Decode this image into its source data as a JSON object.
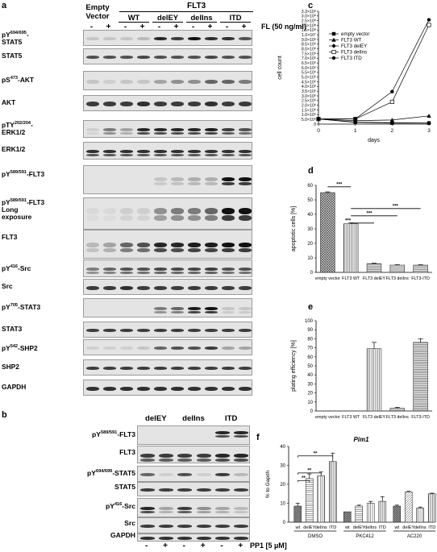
{
  "panel_a": {
    "letter": "a",
    "empty_vector": "Empty Vector",
    "flt3": "FLT3",
    "groups": [
      "WT",
      "delEY",
      "delIns",
      "ITD"
    ],
    "fl_label": "FL (50 ng/ml)",
    "signs": [
      "-",
      "+",
      "-",
      "+",
      "-",
      "+",
      "-",
      "+",
      "-",
      "+"
    ],
    "rows": [
      {
        "label": "pY694/695-STAT5",
        "main": "pY",
        "sup": "694/695",
        "tail": "-",
        "line2": "STAT5"
      },
      {
        "label": "STAT5",
        "main": "STAT5"
      },
      {
        "label": "pS473-AKT",
        "main": "pS",
        "sup": "473",
        "tail": "-AKT"
      },
      {
        "label": "AKT",
        "main": "AKT"
      },
      {
        "label": "pTY202/204-ERK1/2",
        "main": "pTY",
        "sup": "202/204",
        "tail": "-",
        "line2": "ERK1/2"
      },
      {
        "label": "ERK1/2",
        "main": "ERK1/2"
      },
      {
        "label": "pY589/591-FLT3",
        "main": "pY",
        "sup": "589/591",
        "tail": "-FLT3"
      },
      {
        "label": "pY589/591-FLT3 Long exposure",
        "main": "pY",
        "sup": "589/591",
        "tail": "-FLT3",
        "line2": "Long",
        "line3": "exposure"
      },
      {
        "label": "FLT3",
        "main": "FLT3"
      },
      {
        "label": "pY416-Src",
        "main": "pY",
        "sup": "416",
        "tail": "-Src"
      },
      {
        "label": "Src",
        "main": "Src"
      },
      {
        "label": "pY705-STAT3",
        "main": "pY",
        "sup": "705",
        "tail": "-STAT3"
      },
      {
        "label": "STAT3",
        "main": "STAT3"
      },
      {
        "label": "pY542-SHP2",
        "main": "pY",
        "sup": "542",
        "tail": "-SHP2"
      },
      {
        "label": "SHP2",
        "main": "SHP2"
      },
      {
        "label": "GAPDH",
        "main": "GAPDH"
      }
    ]
  },
  "panel_b": {
    "letter": "b",
    "groups": [
      "delEY",
      "delIns",
      "ITD"
    ],
    "rows": [
      {
        "label": "pY589/591-FLT3",
        "main": "pY",
        "sup": "589/591",
        "tail": "-FLT3"
      },
      {
        "label": "FLT3",
        "main": "FLT3"
      },
      {
        "label": "pY694/699-STAT5",
        "main": "pY",
        "sup": "694/699",
        "tail": "-STAT5"
      },
      {
        "label": "STAT5",
        "main": "STAT5"
      },
      {
        "label": "pY416-Src",
        "main": "pY",
        "sup": "416",
        "tail": "-Src"
      },
      {
        "label": "Src",
        "main": "Src"
      },
      {
        "label": "GAPDH",
        "main": "GAPDH"
      }
    ],
    "signs": [
      "-",
      "+",
      "-",
      "+",
      "-",
      "+"
    ],
    "pp1_label": "PP1 [5 µM]"
  },
  "chart_data": [
    {
      "panel": "c",
      "type": "line",
      "xlabel": "days",
      "ylabel": "cell count",
      "x": [
        0,
        1,
        2,
        3
      ],
      "xticks": [
        "0",
        "1",
        "2",
        "3"
      ],
      "yticks": [
        "0",
        "5.0×10⁵",
        "1.0×10⁶",
        "1.5×10⁶",
        "2.0×10⁶",
        "2.5×10⁶",
        "3.0×10⁶",
        "3.5×10⁶",
        "4.0×10⁶",
        "4.5×10⁶",
        "5.0×10⁶",
        "5.5×10⁶",
        "6.0×10⁶",
        "6.5×10⁶",
        "7.0×10⁶",
        "7.5×10⁶",
        "8.0×10⁶",
        "8.5×10⁶",
        "9.0×10⁶",
        "1.0×10⁷",
        "1.5×10⁸",
        "2.0×10⁸",
        "2.5×10⁸",
        "3.0×10⁸",
        "3.3×10⁸"
      ],
      "series": [
        {
          "name": "empty vector",
          "marker": "square-filled",
          "values": [
            1.5,
            0.5,
            0.3,
            0.3
          ]
        },
        {
          "name": "FLT3 WT",
          "marker": "triangle",
          "values": [
            1.5,
            1.0,
            1.2,
            2.4
          ]
        },
        {
          "name": "FLT3 delEY",
          "marker": "diamond",
          "values": [
            1.5,
            0.6,
            0.4,
            0.3
          ]
        },
        {
          "name": "FLT3 delIns",
          "marker": "square-open",
          "values": [
            1.5,
            1.5,
            6.5,
            29.0
          ]
        },
        {
          "name": "FLT3 ITD",
          "marker": "circle-filled",
          "values": [
            1.5,
            1.5,
            9.5,
            30.5
          ]
        }
      ],
      "ylim": [
        0,
        33
      ]
    },
    {
      "panel": "d",
      "type": "bar",
      "ylabel": "apoptotic cells [%]",
      "categories": [
        "empty vector",
        "FLT3 WT",
        "FLT3 delEY",
        "FLT3 delIns",
        "FLT3-ITD"
      ],
      "values": [
        55,
        33.5,
        6,
        5,
        5
      ],
      "errors": [
        0.5,
        0.6,
        0.3,
        0.3,
        0.3
      ],
      "yticks": [
        "0",
        "10",
        "20",
        "30",
        "40",
        "50",
        "60"
      ],
      "ylim": [
        0,
        60
      ],
      "significance": [
        "***",
        "***",
        "***",
        "***"
      ]
    },
    {
      "panel": "e",
      "type": "bar",
      "ylabel": "plating efficiency [%]",
      "categories": [
        "empty vector",
        "FLT3 WT",
        "FLT3 delEY",
        "FLT3 delIns",
        "FLT3-ITD"
      ],
      "values": [
        0,
        0,
        69,
        3,
        76
      ],
      "errors": [
        0,
        0,
        7,
        1,
        4
      ],
      "yticks": [
        "0",
        "10",
        "20",
        "30",
        "40",
        "50",
        "60",
        "70",
        "80",
        "90",
        "100"
      ],
      "ylim": [
        0,
        100
      ]
    },
    {
      "panel": "f",
      "type": "bar",
      "title": "Pim1",
      "ylabel": "% to Gapdh",
      "categories": [
        "wt",
        "delEY",
        "delIns",
        "ITD",
        "wt",
        "delEY",
        "delIns",
        "ITD",
        "wt",
        "delEY",
        "delIns",
        "ITD"
      ],
      "treatments": [
        "DMSO",
        "PKC412",
        "AC220"
      ],
      "values": [
        8.5,
        23,
        24.5,
        32,
        5.5,
        8.5,
        10,
        11,
        8.5,
        16,
        7.5,
        15
      ],
      "errors": [
        1.5,
        2.5,
        2,
        4.5,
        0,
        0.5,
        1,
        2.5,
        0.5,
        0.3,
        0.5,
        0.3
      ],
      "yticks": [
        "0",
        "10",
        "20",
        "30",
        "40"
      ],
      "ylim": [
        0,
        40
      ],
      "significance": [
        "**",
        "**",
        "**"
      ]
    }
  ]
}
